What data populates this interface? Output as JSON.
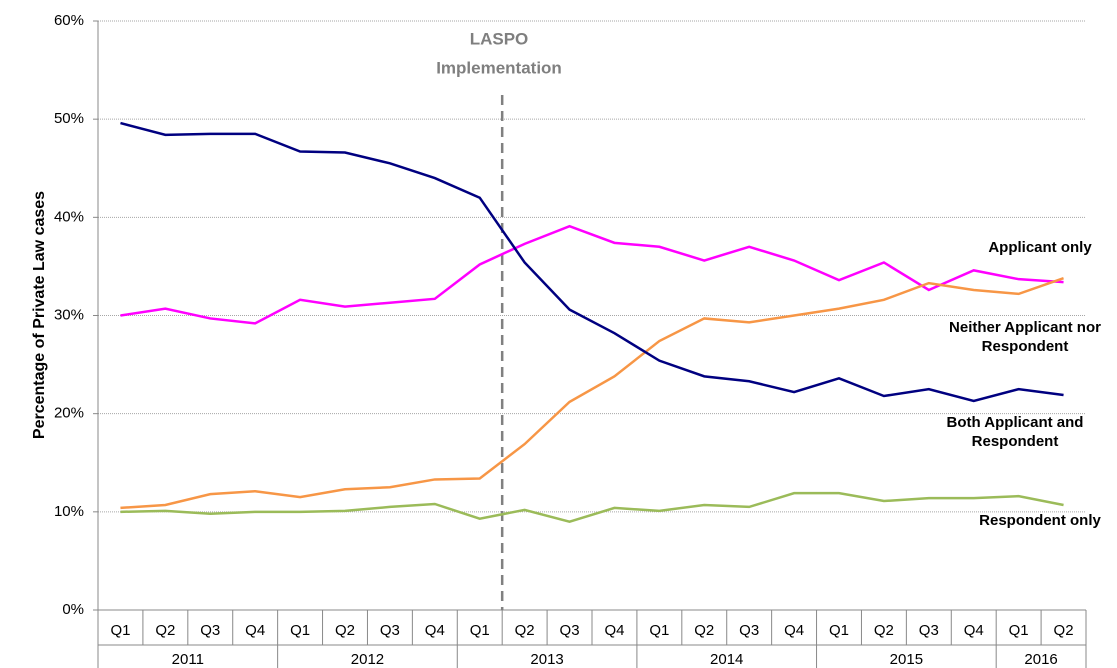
{
  "chart_data": {
    "type": "line",
    "y_label": "Percentage of Private Law cases",
    "annotation": [
      "LASPO",
      "Implementation"
    ],
    "categories": [
      "Q1",
      "Q2",
      "Q3",
      "Q4",
      "Q1",
      "Q2",
      "Q3",
      "Q4",
      "Q1",
      "Q2",
      "Q3",
      "Q4",
      "Q1",
      "Q2",
      "Q3",
      "Q4",
      "Q1",
      "Q2",
      "Q3",
      "Q4",
      "Q1",
      "Q2"
    ],
    "category_years": [
      "2011",
      "2011",
      "2011",
      "2011",
      "2012",
      "2012",
      "2012",
      "2012",
      "2013",
      "2013",
      "2013",
      "2013",
      "2014",
      "2014",
      "2014",
      "2014",
      "2015",
      "2015",
      "2015",
      "2015",
      "2016",
      "2016"
    ],
    "series": [
      {
        "name": "Applicant only",
        "color": "#ff00ff",
        "values": [
          30.0,
          30.7,
          29.7,
          29.2,
          31.6,
          30.9,
          31.3,
          31.7,
          35.2,
          37.3,
          39.1,
          37.4,
          37.0,
          35.6,
          37.0,
          35.6,
          33.6,
          35.4,
          32.6,
          34.6,
          33.7,
          33.4
        ]
      },
      {
        "name": "Neither Applicant nor Respondent",
        "color": "#f79646",
        "values": [
          10.4,
          10.7,
          11.8,
          12.1,
          11.5,
          12.3,
          12.5,
          13.3,
          13.4,
          16.9,
          21.2,
          23.8,
          27.4,
          29.7,
          29.3,
          30.0,
          30.7,
          31.6,
          33.3,
          32.6,
          32.2,
          33.8
        ]
      },
      {
        "name": "Both Applicant and Respondent",
        "color": "#000080",
        "values": [
          49.6,
          48.4,
          48.5,
          48.5,
          46.7,
          46.6,
          45.5,
          44.0,
          42.0,
          35.4,
          30.6,
          28.2,
          25.4,
          23.8,
          23.3,
          22.2,
          23.6,
          21.8,
          22.5,
          21.3,
          22.5,
          21.9
        ]
      },
      {
        "name": "Respondent only",
        "color": "#9bbb59",
        "values": [
          10.0,
          10.1,
          9.8,
          10.0,
          10.0,
          10.1,
          10.5,
          10.8,
          9.3,
          10.2,
          9.0,
          10.4,
          10.1,
          10.7,
          10.5,
          11.9,
          11.9,
          11.1,
          11.4,
          11.4,
          11.6,
          10.7
        ]
      }
    ],
    "ylim": [
      0,
      60
    ],
    "yticks": [
      {
        "value": 0,
        "label": "0%"
      },
      {
        "value": 10,
        "label": "10%"
      },
      {
        "value": 20,
        "label": "20%"
      },
      {
        "value": 30,
        "label": "30%"
      },
      {
        "value": 40,
        "label": "40%"
      },
      {
        "value": 50,
        "label": "50%"
      },
      {
        "value": 60,
        "label": "60%"
      }
    ],
    "grid": true
  }
}
